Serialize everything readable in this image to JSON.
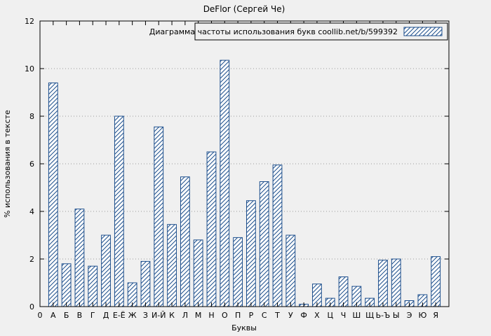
{
  "window": {
    "title": "DeFlor (Сергей Че)"
  },
  "chart_data": {
    "type": "bar",
    "title": "DeFlor (Сергей Че)",
    "legend": "Диаграмма частоты использования букв coollib.net/b/599392",
    "legend_position": "top-right",
    "xlabel": "Буквы",
    "ylabel": "% использования в тексте",
    "ylim": [
      0,
      12
    ],
    "ytick_step": 2,
    "yticks": [
      0,
      2,
      4,
      6,
      8,
      10,
      12
    ],
    "origin_label": "0",
    "grid": true,
    "bar_color": "#1c4e8c",
    "bar_fill": "#ffffff",
    "background": "#f0f0f0",
    "categories": [
      "А",
      "Б",
      "В",
      "Г",
      "Д",
      "Е-Ё",
      "Ж",
      "З",
      "И-Й",
      "К",
      "Л",
      "М",
      "Н",
      "О",
      "П",
      "Р",
      "С",
      "Т",
      "У",
      "Ф",
      "Х",
      "Ц",
      "Ч",
      "Ш",
      "Щ",
      "Ь-Ъ",
      "Ы",
      "Э",
      "Ю",
      "Я"
    ],
    "values": [
      9.4,
      1.8,
      4.1,
      1.7,
      3.0,
      8.0,
      1.0,
      1.9,
      7.55,
      3.45,
      5.45,
      2.8,
      6.5,
      10.35,
      2.9,
      4.45,
      5.25,
      5.95,
      3.0,
      0.1,
      0.95,
      0.35,
      1.25,
      0.85,
      0.35,
      1.95,
      2.0,
      0.25,
      0.5,
      2.1
    ]
  }
}
